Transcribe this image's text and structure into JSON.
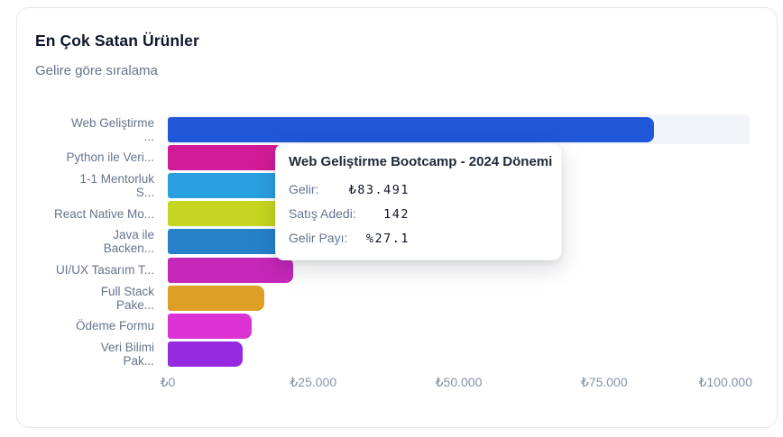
{
  "card": {
    "title": "En Çok Satan Ürünler",
    "subtitle": "Gelire göre sıralama"
  },
  "chart_data": {
    "type": "bar",
    "orientation": "horizontal",
    "title": "En Çok Satan Ürünler",
    "subtitle": "Gelire göre sıralama",
    "xlabel": "",
    "ylabel": "",
    "xlim": [
      0,
      100000
    ],
    "grid": false,
    "x_ticks": [
      {
        "label": "₺0",
        "value": 0
      },
      {
        "label": "₺25.000",
        "value": 25000
      },
      {
        "label": "₺50.000",
        "value": 50000
      },
      {
        "label": "₺75.000",
        "value": 75000
      },
      {
        "label": "₺100.000",
        "value": 100000
      }
    ],
    "products": [
      {
        "label": "Web Geliştirme\n...",
        "value": 83491,
        "color": "#2057d8",
        "highlighted": true
      },
      {
        "label": "Python ile Veri...",
        "value": 55000,
        "color": "#d11b96",
        "highlighted": false
      },
      {
        "label": "1-1 Mentorluk\nS...",
        "value": 42000,
        "color": "#299fe0",
        "highlighted": false
      },
      {
        "label": "React Native Mo...",
        "value": 35000,
        "color": "#c6d620",
        "highlighted": false
      },
      {
        "label": "Java ile\nBacken...",
        "value": 27200,
        "color": "#2681c9",
        "highlighted": false
      },
      {
        "label": "UI/UX Tasarım T...",
        "value": 21600,
        "color": "#c527b8",
        "highlighted": false
      },
      {
        "label": "Full Stack\nPake...",
        "value": 16600,
        "color": "#dd9f26",
        "highlighted": false
      },
      {
        "label": "Ödeme Formu",
        "value": 14400,
        "color": "#dc32d3",
        "highlighted": false
      },
      {
        "label": "Veri Bilimi\nPak...",
        "value": 12900,
        "color": "#9629de",
        "highlighted": false
      }
    ]
  },
  "tooltip": {
    "title": "Web Geliştirme Bootcamp - 2024 Dönemi",
    "rows": [
      {
        "label": "Gelir:",
        "value": "₺83.491"
      },
      {
        "label": "Satış Adedi:",
        "value": "142"
      },
      {
        "label": "Gelir Payı:",
        "value": "%27.1"
      }
    ]
  },
  "colors": {
    "card_border": "#e5e7eb",
    "title_text": "#0f172a",
    "subtitle_text": "#64748b",
    "axis_tick_text": "#8494a8",
    "hover_band": "#f1f5f9"
  }
}
